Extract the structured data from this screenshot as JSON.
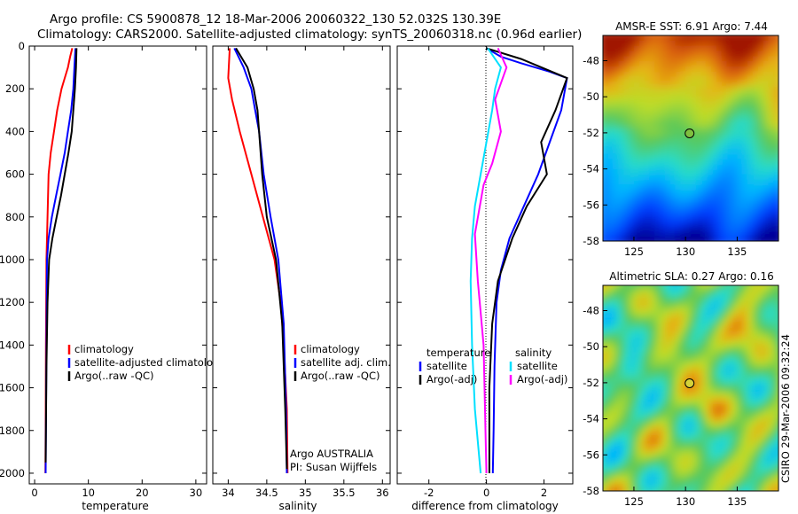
{
  "title_line1": "Argo profile: CS 5900878_12 18-Mar-2006 20060322_130 52.032S 130.39E",
  "title_line2": "Climatology: CARS2000. Satellite-adjusted climatology: synTS_20060318.nc (0.96d earlier)",
  "chart_data": [
    {
      "type": "line",
      "name": "temperature-profile",
      "xlabel": "temperature",
      "xlim": [
        -1,
        32
      ],
      "ylim": [
        0,
        2050
      ],
      "y_reversed": true,
      "xticks": [
        0,
        10,
        20,
        30
      ],
      "yticks": [
        0,
        200,
        400,
        600,
        800,
        1000,
        1200,
        1400,
        1600,
        1800,
        2000
      ],
      "legend": [
        "climatology",
        "satellite-adjusted climatology",
        "Argo(..raw -QC)"
      ],
      "series": [
        {
          "name": "climatology",
          "color": "#ff0000",
          "x": [
            7.0,
            6.6,
            6.2,
            5.6,
            5.0,
            4.2,
            3.6,
            3.0,
            2.6,
            2.4,
            2.2,
            2.1,
            2.05,
            2.0
          ],
          "y": [
            10,
            50,
            100,
            150,
            200,
            300,
            400,
            500,
            600,
            800,
            1000,
            1400,
            1800,
            2000
          ]
        },
        {
          "name": "satellite-adjusted climatology",
          "color": "#0000ff",
          "x": [
            7.6,
            7.4,
            7.2,
            6.8,
            6.2,
            5.6,
            4.8,
            4.0,
            3.2,
            2.6,
            2.3,
            2.2,
            2.1,
            2.05
          ],
          "y": [
            10,
            100,
            200,
            300,
            400,
            500,
            600,
            700,
            800,
            900,
            1000,
            1400,
            1800,
            2000
          ]
        },
        {
          "name": "Argo(..raw -QC)",
          "color": "#000000",
          "x": [
            7.8,
            7.7,
            7.5,
            7.2,
            6.9,
            6.3,
            5.6,
            4.9,
            4.1,
            3.3,
            2.7,
            2.4,
            2.2,
            2.1,
            2.05
          ],
          "y": [
            10,
            100,
            200,
            300,
            400,
            500,
            600,
            700,
            800,
            900,
            1000,
            1200,
            1500,
            1800,
            1950
          ]
        }
      ]
    },
    {
      "type": "line",
      "name": "salinity-profile",
      "xlabel": "salinity",
      "xlim": [
        33.8,
        36.1
      ],
      "ylim": [
        0,
        2050
      ],
      "y_reversed": true,
      "xticks": [
        34,
        34.5,
        35,
        35.5,
        36
      ],
      "yticks": [
        0,
        200,
        400,
        600,
        800,
        1000,
        1200,
        1400,
        1600,
        1800,
        2000
      ],
      "legend": [
        "climatology",
        "satellite adj. clim.",
        "Argo(..raw -QC)"
      ],
      "annotation": [
        "Argo AUSTRALIA",
        "PI: Susan Wijffels"
      ],
      "series": [
        {
          "name": "climatology",
          "color": "#ff0000",
          "x": [
            34.02,
            34.0,
            34.05,
            34.15,
            34.3,
            34.45,
            34.6,
            34.68,
            34.72,
            34.76,
            34.77
          ],
          "y": [
            10,
            150,
            250,
            400,
            600,
            800,
            1000,
            1200,
            1400,
            1700,
            2000
          ]
        },
        {
          "name": "satellite adj. clim.",
          "color": "#0000ff",
          "x": [
            34.08,
            34.2,
            34.3,
            34.35,
            34.4,
            34.46,
            34.55,
            34.65,
            34.72,
            34.75,
            34.76
          ],
          "y": [
            10,
            100,
            200,
            300,
            400,
            600,
            800,
            1000,
            1300,
            1700,
            2000
          ]
        },
        {
          "name": "Argo(..raw -QC)",
          "color": "#000000",
          "x": [
            34.1,
            34.25,
            34.33,
            34.38,
            34.4,
            34.44,
            34.5,
            34.62,
            34.7,
            34.74,
            34.76
          ],
          "y": [
            10,
            100,
            200,
            300,
            400,
            600,
            800,
            1000,
            1300,
            1700,
            1980
          ]
        }
      ]
    },
    {
      "type": "line",
      "name": "difference-profile",
      "xlabel": "difference from climatology",
      "xlim": [
        -3.1,
        3.0
      ],
      "ylim": [
        0,
        2050
      ],
      "y_reversed": true,
      "xticks": [
        -2,
        0,
        2
      ],
      "yticks": [
        0,
        200,
        400,
        600,
        800,
        1000,
        1200,
        1400,
        1600,
        1800,
        2000
      ],
      "legend_headers": [
        "temperature",
        "salinity"
      ],
      "legend": [
        "satellite",
        "Argo(-adj)",
        "satellite",
        "Argo(-adj)"
      ],
      "series": [
        {
          "name": "temperature satellite",
          "color": "#0000ff",
          "x": [
            0.0,
            0.5,
            1.2,
            2.2,
            2.8,
            2.6,
            2.2,
            1.8,
            1.3,
            0.8,
            0.5,
            0.35,
            0.28,
            0.25,
            0.22
          ],
          "y": [
            10,
            50,
            80,
            120,
            150,
            300,
            450,
            600,
            750,
            900,
            1050,
            1200,
            1500,
            1800,
            2000
          ]
        },
        {
          "name": "temperature Argo(-adj)",
          "color": "#000000",
          "x": [
            0.0,
            1.2,
            2.8,
            2.4,
            1.9,
            2.1,
            1.4,
            0.9,
            0.4,
            0.2,
            0.1,
            0.1
          ],
          "y": [
            10,
            60,
            150,
            300,
            450,
            600,
            750,
            900,
            1100,
            1300,
            1600,
            2000
          ]
        },
        {
          "name": "salinity satellite",
          "color": "#00e0ff",
          "x": [
            0.05,
            0.5,
            0.3,
            0.2,
            0.0,
            -0.2,
            -0.4,
            -0.5,
            -0.55,
            -0.5,
            -0.4,
            -0.2
          ],
          "y": [
            10,
            100,
            200,
            300,
            450,
            600,
            750,
            900,
            1100,
            1400,
            1700,
            2000
          ]
        },
        {
          "name": "salinity Argo(-adj)",
          "color": "#ff00ff",
          "x": [
            0.4,
            0.7,
            0.3,
            0.5,
            0.2,
            -0.1,
            -0.4,
            -0.3,
            -0.1,
            -0.05,
            0.0
          ],
          "y": [
            10,
            100,
            250,
            400,
            550,
            650,
            880,
            1100,
            1400,
            1700,
            2000
          ]
        }
      ]
    },
    {
      "type": "heatmap",
      "name": "sst-map",
      "title": "AMSR-E SST: 6.91  Argo: 7.44",
      "xlim": [
        122,
        139
      ],
      "ylim": [
        -58,
        -46.6
      ],
      "xticks": [
        125,
        130,
        135
      ],
      "yticks": [
        -48,
        -50,
        -52,
        -54,
        -56,
        -58
      ],
      "marker": {
        "lon": 130.39,
        "lat": -52.032
      }
    },
    {
      "type": "heatmap",
      "name": "sla-map",
      "title": "Altimetric SLA: 0.27  Argo: 0.16",
      "xlim": [
        122,
        139
      ],
      "ylim": [
        -58,
        -46.6
      ],
      "xticks": [
        125,
        130,
        135
      ],
      "yticks": [
        -48,
        -50,
        -52,
        -54,
        -56,
        -58
      ],
      "marker": {
        "lon": 130.39,
        "lat": -52.032
      }
    }
  ],
  "side_label": "CSIRO 29-Mar-2006 09:32:24"
}
